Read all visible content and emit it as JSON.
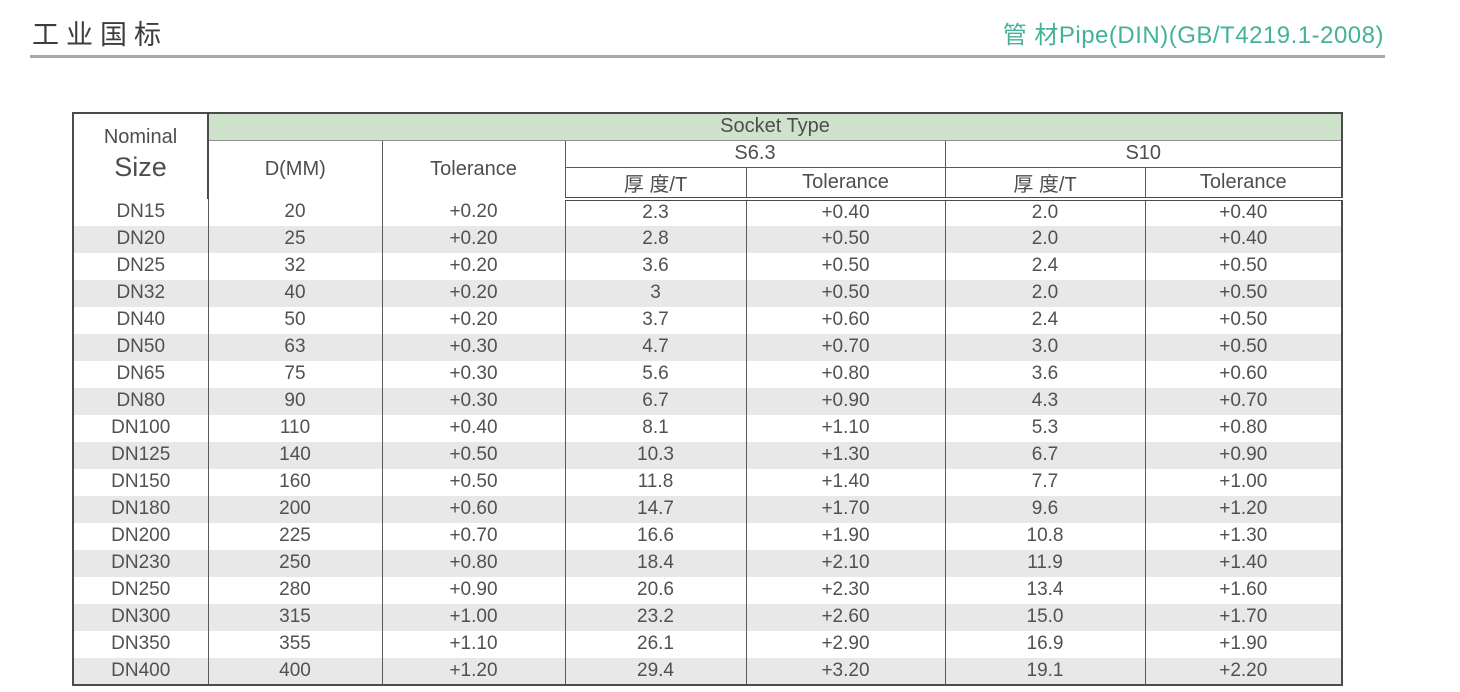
{
  "page": {
    "title_left": "工业国标",
    "title_right": "管 材Pipe(DIN)(GB/T4219.1-2008)"
  },
  "colors": {
    "accent_teal": "#44b298",
    "banner_green": "#cfe3cc",
    "stripe_gray": "#e8e8e8"
  },
  "table": {
    "header": {
      "nominal_line1": "Nominal",
      "nominal_line2": "Size",
      "socket_type": "Socket Type",
      "d_mm": "D(MM)",
      "d_tolerance": "Tolerance",
      "s63": "S6.3",
      "s10": "S10",
      "s63_thickness": "厚 度/T",
      "s63_tolerance": "Tolerance",
      "s10_thickness": "厚 度/T",
      "s10_tolerance": "Tolerance"
    },
    "columns": [
      "nominal-size",
      "d-mm",
      "d-tolerance",
      "s63-thickness",
      "s63-tolerance",
      "s10-thickness",
      "s10-tolerance"
    ],
    "rows": [
      [
        "DN15",
        "20",
        "+0.20",
        "2.3",
        "+0.40",
        "2.0",
        "+0.40"
      ],
      [
        "DN20",
        "25",
        "+0.20",
        "2.8",
        "+0.50",
        "2.0",
        "+0.40"
      ],
      [
        "DN25",
        "32",
        "+0.20",
        "3.6",
        "+0.50",
        "2.4",
        "+0.50"
      ],
      [
        "DN32",
        "40",
        "+0.20",
        "3",
        "+0.50",
        "2.0",
        "+0.50"
      ],
      [
        "DN40",
        "50",
        "+0.20",
        "3.7",
        "+0.60",
        "2.4",
        "+0.50"
      ],
      [
        "DN50",
        "63",
        "+0.30",
        "4.7",
        "+0.70",
        "3.0",
        "+0.50"
      ],
      [
        "DN65",
        "75",
        "+0.30",
        "5.6",
        "+0.80",
        "3.6",
        "+0.60"
      ],
      [
        "DN80",
        "90",
        "+0.30",
        "6.7",
        "+0.90",
        "4.3",
        "+0.70"
      ],
      [
        "DN100",
        "110",
        "+0.40",
        "8.1",
        "+1.10",
        "5.3",
        "+0.80"
      ],
      [
        "DN125",
        "140",
        "+0.50",
        "10.3",
        "+1.30",
        "6.7",
        "+0.90"
      ],
      [
        "DN150",
        "160",
        "+0.50",
        "11.8",
        "+1.40",
        "7.7",
        "+1.00"
      ],
      [
        "DN180",
        "200",
        "+0.60",
        "14.7",
        "+1.70",
        "9.6",
        "+1.20"
      ],
      [
        "DN200",
        "225",
        "+0.70",
        "16.6",
        "+1.90",
        "10.8",
        "+1.30"
      ],
      [
        "DN230",
        "250",
        "+0.80",
        "18.4",
        "+2.10",
        "11.9",
        "+1.40"
      ],
      [
        "DN250",
        "280",
        "+0.90",
        "20.6",
        "+2.30",
        "13.4",
        "+1.60"
      ],
      [
        "DN300",
        "315",
        "+1.00",
        "23.2",
        "+2.60",
        "15.0",
        "+1.70"
      ],
      [
        "DN350",
        "355",
        "+1.10",
        "26.1",
        "+2.90",
        "16.9",
        "+1.90"
      ],
      [
        "DN400",
        "400",
        "+1.20",
        "29.4",
        "+3.20",
        "19.1",
        "+2.20"
      ]
    ]
  }
}
